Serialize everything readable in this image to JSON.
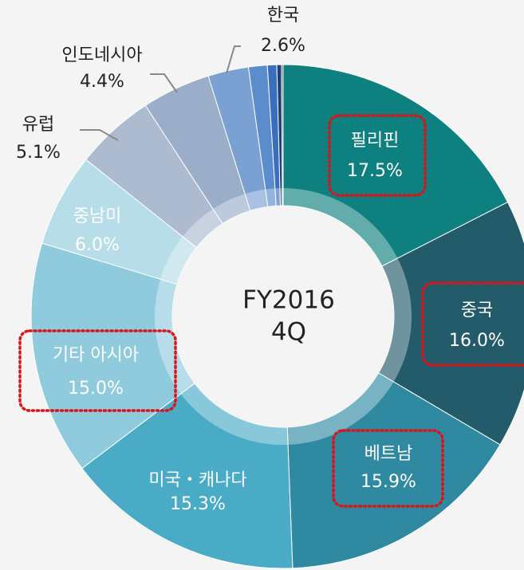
{
  "chart_data": {
    "type": "donut",
    "center_text": [
      "FY2016",
      "4Q"
    ],
    "categories": [
      "필리핀",
      "중국",
      "베트남",
      "미국・캐나다",
      "기타 아시아",
      "중남미",
      "유럽",
      "인도네시아",
      "한국",
      null,
      null,
      null,
      null
    ],
    "values": [
      17.5,
      16.0,
      15.9,
      15.3,
      15.0,
      6.0,
      5.1,
      4.4,
      2.6,
      1.2,
      0.6,
      0.3,
      0.1
    ],
    "value_labels": [
      "17.5%",
      "16.0%",
      "15.9%",
      "15.3%",
      "15.0%",
      "6.0%",
      "5.1%",
      "4.4%",
      "2.6%",
      null,
      null,
      null,
      null
    ],
    "colors": [
      "#0f8080",
      "#245b6b",
      "#2f8aa1",
      "#4aabc7",
      "#8fcbdd",
      "#b7dde8",
      "#adbbd1",
      "#9aaec9",
      "#7ba1d2",
      "#5b8dcd",
      "#3a6fbd",
      "#1f3f7a",
      "#555555"
    ]
  }
}
